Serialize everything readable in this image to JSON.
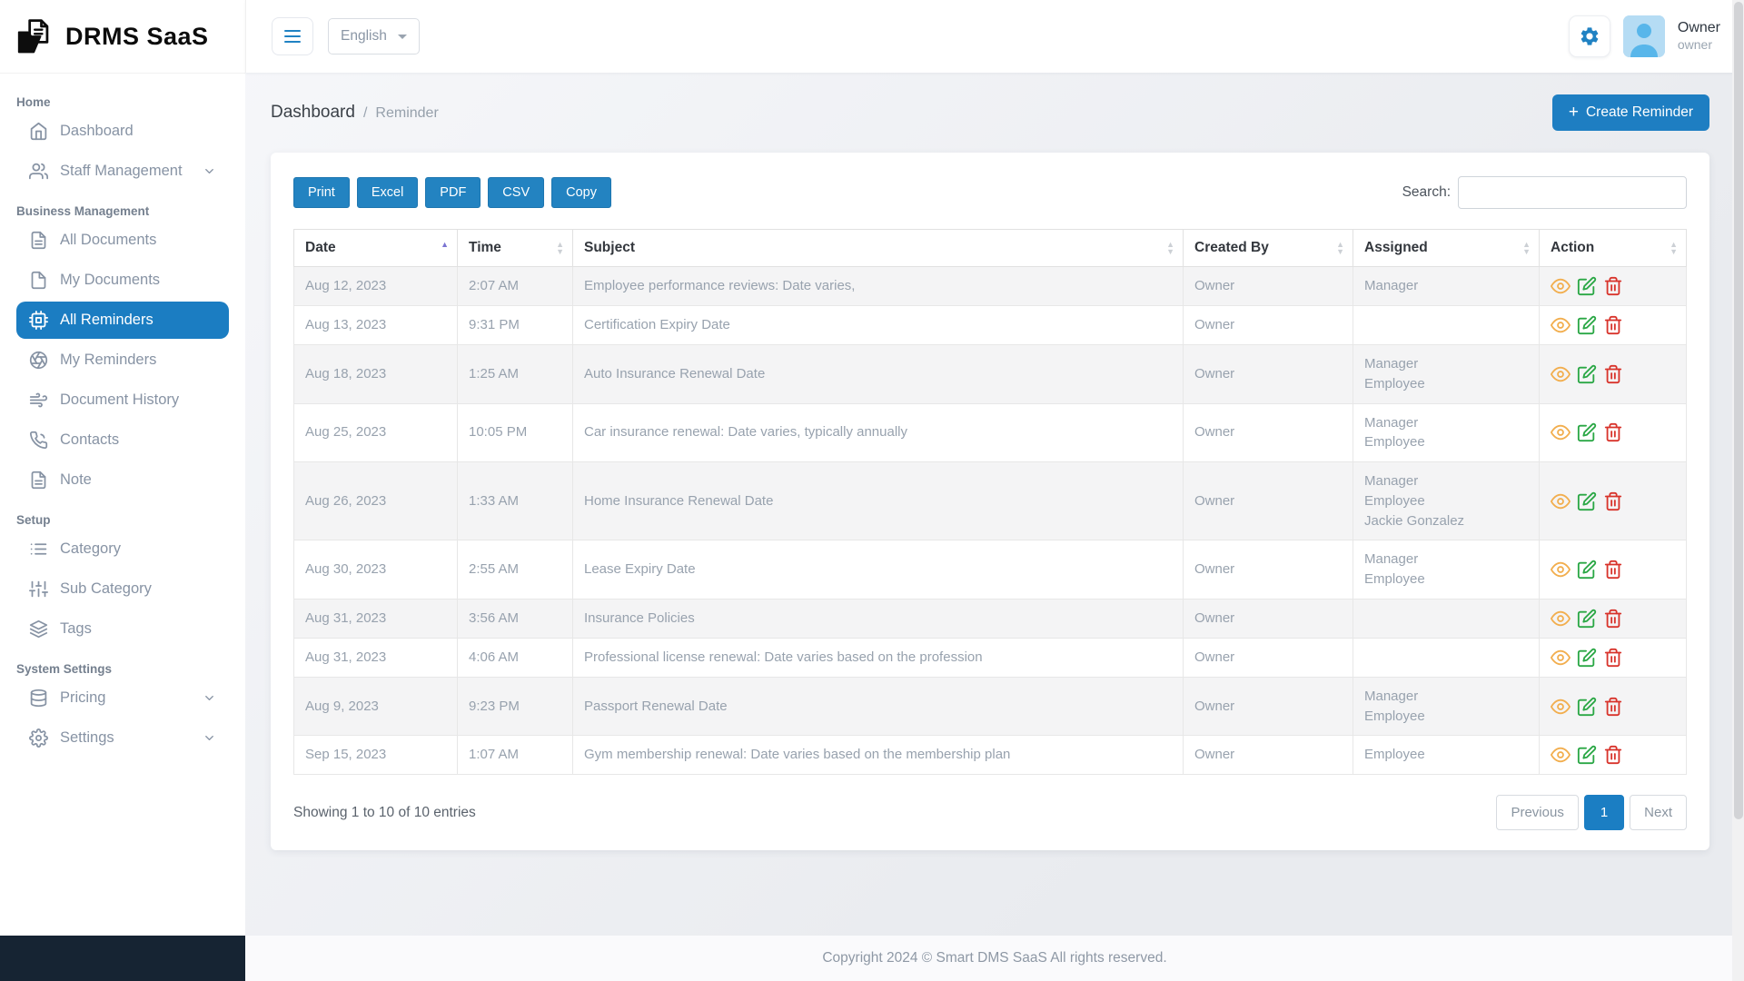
{
  "brand": {
    "name": "DRMS SaaS"
  },
  "header": {
    "language": "English",
    "user": {
      "name": "Owner",
      "role": "owner"
    }
  },
  "breadcrumb": {
    "parent": "Dashboard",
    "separator": "/",
    "current": "Reminder"
  },
  "create_button": {
    "plus": "+",
    "label": "Create Reminder"
  },
  "sidebar": {
    "sections": [
      {
        "title": "Home",
        "items": [
          {
            "label": "Dashboard",
            "icon": "home"
          },
          {
            "label": "Staff Management",
            "icon": "users",
            "chevron": true
          }
        ]
      },
      {
        "title": "Business Management",
        "items": [
          {
            "label": "All Documents",
            "icon": "file-text"
          },
          {
            "label": "My Documents",
            "icon": "file"
          },
          {
            "label": "All Reminders",
            "icon": "cpu",
            "active": true
          },
          {
            "label": "My Reminders",
            "icon": "aperture"
          },
          {
            "label": "Document History",
            "icon": "wind"
          },
          {
            "label": "Contacts",
            "icon": "phone"
          },
          {
            "label": "Note",
            "icon": "file-text"
          }
        ]
      },
      {
        "title": "Setup",
        "items": [
          {
            "label": "Category",
            "icon": "list"
          },
          {
            "label": "Sub Category",
            "icon": "sliders"
          },
          {
            "label": "Tags",
            "icon": "layers"
          }
        ]
      },
      {
        "title": "System Settings",
        "items": [
          {
            "label": "Pricing",
            "icon": "database",
            "chevron": true
          },
          {
            "label": "Settings",
            "icon": "settings",
            "chevron": true
          }
        ]
      }
    ]
  },
  "toolbar": {
    "buttons": [
      "Print",
      "Excel",
      "PDF",
      "CSV",
      "Copy"
    ],
    "search_label": "Search:",
    "search_value": ""
  },
  "table": {
    "columns": [
      {
        "label": "Date",
        "sort": "asc"
      },
      {
        "label": "Time",
        "sort": "both"
      },
      {
        "label": "Subject",
        "sort": "both"
      },
      {
        "label": "Created By",
        "sort": "both"
      },
      {
        "label": "Assigned",
        "sort": "both"
      },
      {
        "label": "Action",
        "sort": "both"
      }
    ],
    "action_icons": [
      "view-icon",
      "edit-icon",
      "delete-icon"
    ],
    "rows": [
      {
        "date": "Aug 12, 2023",
        "time": "2:07 AM",
        "subject": "Employee performance reviews: Date varies,",
        "created_by": "Owner",
        "assigned": [
          "Manager"
        ]
      },
      {
        "date": "Aug 13, 2023",
        "time": "9:31 PM",
        "subject": "Certification Expiry Date",
        "created_by": "Owner",
        "assigned": []
      },
      {
        "date": "Aug 18, 2023",
        "time": "1:25 AM",
        "subject": "Auto Insurance Renewal Date",
        "created_by": "Owner",
        "assigned": [
          "Manager",
          "Employee"
        ]
      },
      {
        "date": "Aug 25, 2023",
        "time": "10:05 PM",
        "subject": "Car insurance renewal: Date varies, typically annually",
        "created_by": "Owner",
        "assigned": [
          "Manager",
          "Employee"
        ]
      },
      {
        "date": "Aug 26, 2023",
        "time": "1:33 AM",
        "subject": "Home Insurance Renewal Date",
        "created_by": "Owner",
        "assigned": [
          "Manager",
          "Employee",
          "Jackie Gonzalez"
        ]
      },
      {
        "date": "Aug 30, 2023",
        "time": "2:55 AM",
        "subject": "Lease Expiry Date",
        "created_by": "Owner",
        "assigned": [
          "Manager",
          "Employee"
        ]
      },
      {
        "date": "Aug 31, 2023",
        "time": "3:56 AM",
        "subject": "Insurance Policies",
        "created_by": "Owner",
        "assigned": []
      },
      {
        "date": "Aug 31, 2023",
        "time": "4:06 AM",
        "subject": "Professional license renewal: Date varies based on the profession",
        "created_by": "Owner",
        "assigned": []
      },
      {
        "date": "Aug 9, 2023",
        "time": "9:23 PM",
        "subject": "Passport Renewal Date",
        "created_by": "Owner",
        "assigned": [
          "Manager",
          "Employee"
        ]
      },
      {
        "date": "Sep 15, 2023",
        "time": "1:07 AM",
        "subject": "Gym membership renewal: Date varies based on the membership plan",
        "created_by": "Owner",
        "assigned": [
          "Employee"
        ]
      }
    ]
  },
  "footer": {
    "showing": "Showing 1 to 10 of 10 entries",
    "pagination": {
      "previous": "Previous",
      "page": "1",
      "next": "Next"
    }
  },
  "copyright": "Copyright 2024 © Smart DMS SaaS All rights reserved.",
  "colors": {
    "primary": "#1e7ec2",
    "export_button": "#2383c1",
    "active_nav": "#1b7dc2",
    "view_icon": "#f2ae4e",
    "edit_icon": "#2aa745",
    "delete_icon": "#d8332b",
    "sidebar_footer": "#162433"
  }
}
